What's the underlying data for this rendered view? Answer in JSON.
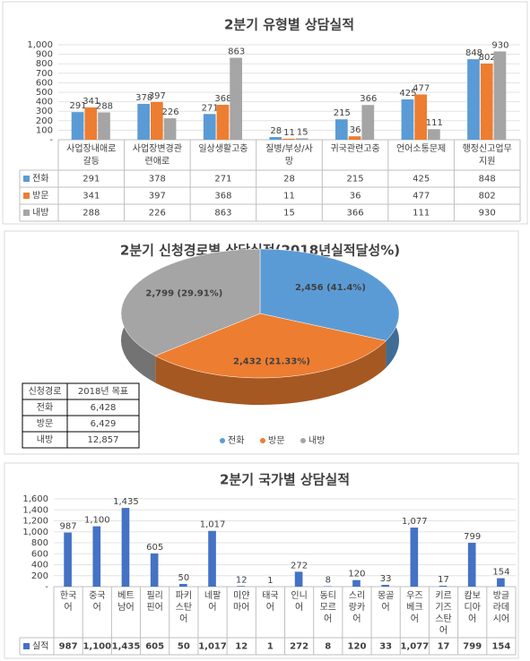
{
  "chart_data": [
    {
      "type": "bar",
      "title": "2분기 유형별 상담실적",
      "categories": [
        "사업장내애로\n갈등",
        "사업장변경관\n련애로",
        "일상생활고충",
        "질병/부상/사\n망",
        "귀국관련고충",
        "언어소통문제",
        "행정신고업무\n지원"
      ],
      "series": [
        {
          "name": "전화",
          "color": "#5b9bd5",
          "values": [
            291,
            378,
            271,
            28,
            215,
            425,
            848
          ]
        },
        {
          "name": "방문",
          "color": "#ed7d31",
          "values": [
            341,
            397,
            368,
            11,
            36,
            477,
            802
          ]
        },
        {
          "name": "내방",
          "color": "#a5a5a5",
          "values": [
            288,
            226,
            863,
            15,
            366,
            111,
            930
          ]
        }
      ],
      "ylim": [
        0,
        1000
      ],
      "yticks": [
        {
          "value": 0,
          "label": "-"
        },
        100,
        200,
        300,
        400,
        500,
        600,
        700,
        800,
        900,
        {
          "value": 1000,
          "label": "1,000"
        }
      ],
      "grid": true
    },
    {
      "type": "pie",
      "title": "2분기 신청경로별 상담실적(2018년실적달성%)",
      "categories": [
        "전화",
        "방문",
        "내방"
      ],
      "colors": [
        "#5b9bd5",
        "#ed7d31",
        "#a5a5a5"
      ],
      "values": [
        2456,
        2432,
        2799
      ],
      "value_labels": [
        "2,456 (41.4%)",
        "2,432 (21.33%)",
        "2,799 (29.91%)"
      ],
      "table": {
        "header": [
          "신청경로",
          "2018년 목표"
        ],
        "rows": [
          [
            "전화",
            "6,428"
          ],
          [
            "방문",
            "6,429"
          ],
          [
            "내방",
            "12,857"
          ]
        ]
      }
    },
    {
      "type": "bar",
      "title": "2분기 국가별 상담실적",
      "categories": [
        "한국\n어",
        "중국\n어",
        "베트\n남어",
        "필리\n핀어",
        "파키\n스탄\n어",
        "네팔\n어",
        "미얀\n마어",
        "태국\n어",
        "인니\n어",
        "동티\n모르\n어",
        "스리\n랑카\n어",
        "몽골\n어",
        "우즈\n베크\n어",
        "키르\n기즈\n스탄\n어",
        "캄보\n디아\n어",
        "방글\n라데\n시어"
      ],
      "series": [
        {
          "name": "실적",
          "color": "#4472c4",
          "values": [
            987,
            1100,
            1435,
            605,
            50,
            1017,
            12,
            1,
            272,
            8,
            120,
            33,
            1077,
            17,
            799,
            154
          ],
          "value_labels": [
            "987",
            "1,100",
            "1,435",
            "605",
            "50",
            "1,017",
            "12",
            "1",
            "272",
            "8",
            "120",
            "33",
            "1,077",
            "17",
            "799",
            "154"
          ]
        }
      ],
      "ylim": [
        0,
        1600
      ],
      "yticks": [
        {
          "value": 0,
          "label": "-"
        },
        200,
        400,
        600,
        800,
        {
          "value": 1000,
          "label": "1,000"
        },
        {
          "value": 1200,
          "label": "1,200"
        },
        {
          "value": 1400,
          "label": "1,400"
        },
        {
          "value": 1600,
          "label": "1,600"
        }
      ],
      "grid": true
    }
  ]
}
